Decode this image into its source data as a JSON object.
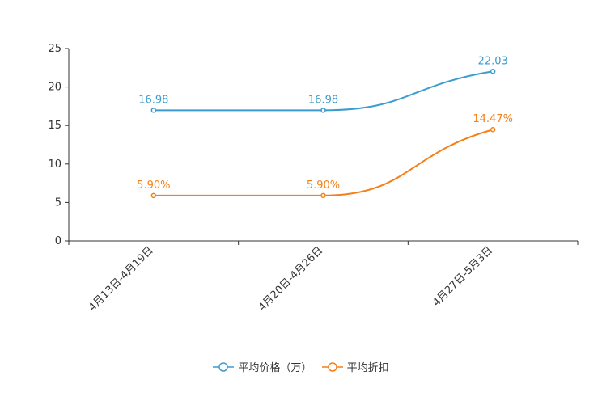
{
  "chart_data": {
    "type": "line",
    "categories": [
      "4月13日-4月19日",
      "4月20日-4月26日",
      "4月27日-5月3日"
    ],
    "ylim": [
      0,
      25
    ],
    "yticks": [
      0,
      5,
      10,
      15,
      20,
      25
    ],
    "series": [
      {
        "name": "平均价格（万）",
        "values": [
          16.98,
          16.98,
          22.03
        ],
        "labels": [
          "16.98",
          "16.98",
          "22.03"
        ],
        "color": "#3b9ccf"
      },
      {
        "name": "平均折扣",
        "values": [
          5.9,
          5.9,
          14.47
        ],
        "labels": [
          "5.90%",
          "5.90%",
          "14.47%"
        ],
        "color": "#f57f17"
      }
    ],
    "legend_position": "bottom-center",
    "smooth": true
  }
}
